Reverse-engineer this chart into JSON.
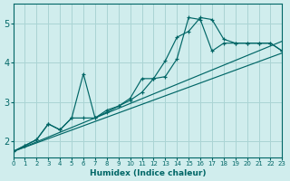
{
  "bg_color": "#d0eded",
  "grid_color": "#aad4d4",
  "line_color": "#006666",
  "xlabel": "Humidex (Indice chaleur)",
  "xlim": [
    0,
    23
  ],
  "ylim": [
    1.6,
    5.5
  ],
  "yticks": [
    2,
    3,
    4,
    5
  ],
  "xticks": [
    0,
    1,
    2,
    3,
    4,
    5,
    6,
    7,
    8,
    9,
    10,
    11,
    12,
    13,
    14,
    15,
    16,
    17,
    18,
    19,
    20,
    21,
    22,
    23
  ],
  "line1_x": [
    0,
    1,
    2,
    3,
    4,
    5,
    6,
    7,
    8,
    9,
    10,
    11,
    12,
    13,
    14,
    15,
    16,
    17,
    18,
    19,
    20,
    21,
    22,
    23
  ],
  "line1_y": [
    1.75,
    1.9,
    2.05,
    2.45,
    2.3,
    2.6,
    3.72,
    2.6,
    2.75,
    2.9,
    3.1,
    3.6,
    3.6,
    3.65,
    4.1,
    5.15,
    5.1,
    4.3,
    4.5,
    4.5,
    4.5,
    4.5,
    4.5,
    4.3
  ],
  "line2_x": [
    0,
    1,
    2,
    3,
    4,
    5,
    6,
    7,
    8,
    9,
    10,
    11,
    12,
    13,
    14,
    15,
    16,
    17,
    18,
    19,
    20,
    21,
    22,
    23
  ],
  "line2_y": [
    1.75,
    1.9,
    2.05,
    2.45,
    2.3,
    2.6,
    2.6,
    2.6,
    2.8,
    2.9,
    3.05,
    3.25,
    3.6,
    4.05,
    4.65,
    4.8,
    5.15,
    5.1,
    4.6,
    4.5,
    4.5,
    4.5,
    4.5,
    4.3
  ],
  "line3_x": [
    0,
    23
  ],
  "line3_y": [
    1.75,
    4.55
  ],
  "line4_x": [
    0,
    23
  ],
  "line4_y": [
    1.75,
    4.25
  ]
}
